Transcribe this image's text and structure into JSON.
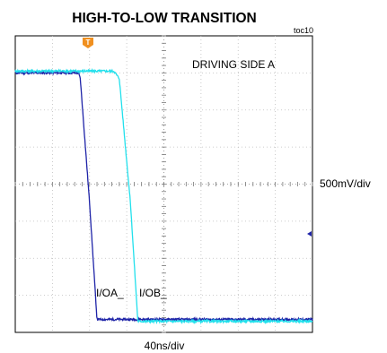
{
  "chart_data": {
    "type": "line",
    "title": "HIGH-TO-LOW TRANSITION",
    "figure_id": "toc10",
    "annotation": "DRIVING SIDE A",
    "x_scale": "40ns/div",
    "y_scale": "500mV/div",
    "x_divisions": 8,
    "y_divisions": 8,
    "series": [
      {
        "name": "I/OA_",
        "color": "#1f24a8",
        "x_div": [
          0,
          1.7,
          1.75,
          2.0,
          2.2,
          8
        ],
        "y_div": [
          7.0,
          7.0,
          6.85,
          3.5,
          0.35,
          0.35
        ]
      },
      {
        "name": "I/OB_",
        "color": "#22e0ec",
        "x_div": [
          0,
          2.65,
          2.8,
          3.1,
          3.3,
          8
        ],
        "y_div": [
          7.05,
          7.05,
          6.85,
          3.5,
          0.3,
          0.3
        ]
      }
    ],
    "grid": true,
    "trigger_marker": "T",
    "ground_marker": "arrow-left"
  }
}
